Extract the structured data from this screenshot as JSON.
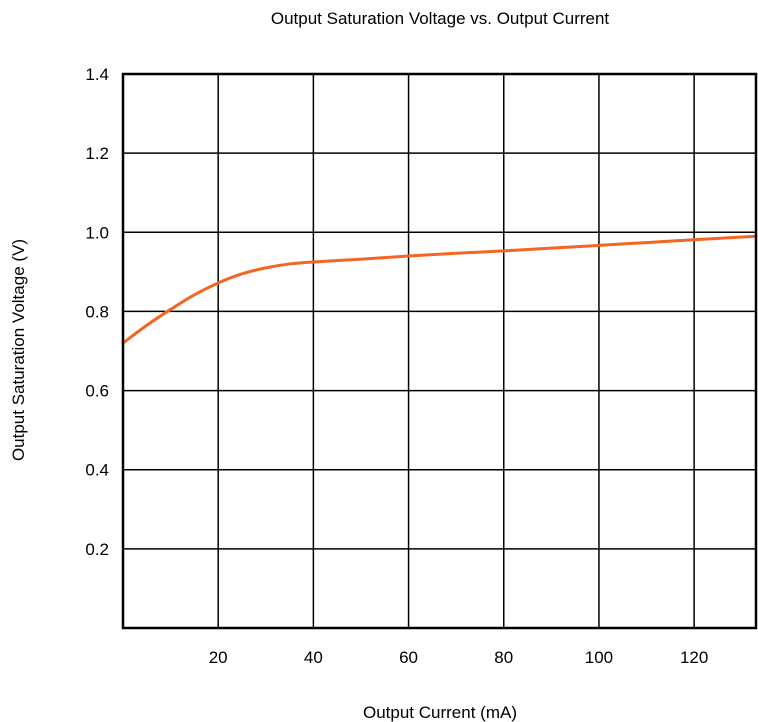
{
  "chart_data": {
    "type": "line",
    "title": "Output Saturation Voltage vs. Output Current",
    "xlabel": "Output Current (mA)",
    "ylabel": "Output Saturation Voltage (V)",
    "xlim": [
      0,
      133
    ],
    "ylim": [
      0,
      1.4
    ],
    "x_ticks": [
      20,
      40,
      60,
      80,
      100,
      120
    ],
    "x_tick_labels": [
      "20",
      "40",
      "60",
      "80",
      "100",
      "120"
    ],
    "y_ticks": [
      0.2,
      0.4,
      0.6,
      0.8,
      1.0,
      1.2,
      1.4
    ],
    "y_tick_labels": [
      "0.2",
      "0.4",
      "0.6",
      "0.8",
      "1.0",
      "1.2",
      "1.4"
    ],
    "grid": true,
    "legend": "none",
    "line_color": "#f26522",
    "series": [
      {
        "x": [
          0,
          5,
          10,
          15,
          20,
          25,
          30,
          35,
          40,
          50,
          60,
          70,
          80,
          90,
          100,
          110,
          120,
          133
        ],
        "values": [
          0.72,
          0.765,
          0.805,
          0.842,
          0.872,
          0.895,
          0.91,
          0.92,
          0.925,
          0.932,
          0.94,
          0.947,
          0.953,
          0.96,
          0.967,
          0.974,
          0.981,
          0.99
        ]
      }
    ]
  }
}
